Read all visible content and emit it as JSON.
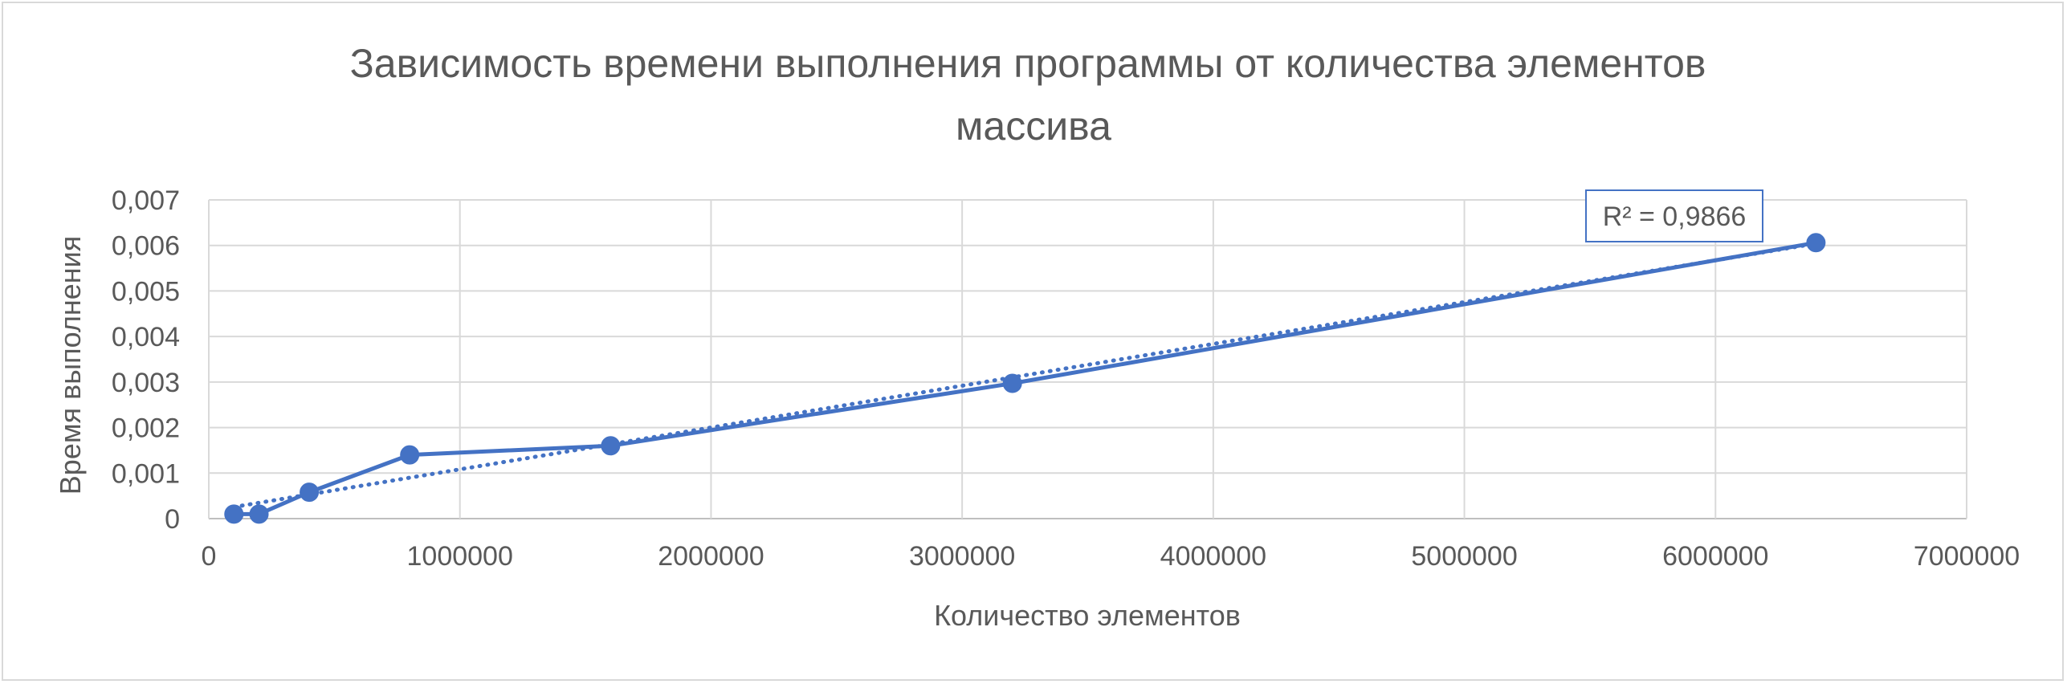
{
  "chart_data": {
    "type": "scatter",
    "title": "Зависимость времени выполнения программы от количества элементов массива",
    "title_lines": [
      "Зависимость времени выполнения программы от количества элементов",
      "массива"
    ],
    "xlabel": "Количество элементов",
    "ylabel": "Время выполнения",
    "xlim": [
      0,
      7000000
    ],
    "ylim": [
      0,
      0.007
    ],
    "x_ticks": [
      0,
      1000000,
      2000000,
      3000000,
      4000000,
      5000000,
      6000000,
      7000000
    ],
    "x_tick_labels": [
      "0",
      "1000000",
      "2000000",
      "3000000",
      "4000000",
      "5000000",
      "6000000",
      "7000000"
    ],
    "y_ticks": [
      0,
      0.001,
      0.002,
      0.003,
      0.004,
      0.005,
      0.006,
      0.007
    ],
    "y_tick_labels": [
      "0",
      "0,001",
      "0,002",
      "0,003",
      "0,004",
      "0,005",
      "0,006",
      "0,007"
    ],
    "grid": true,
    "series": [
      {
        "x": [
          100000,
          200000,
          400000,
          800000,
          1600000,
          3200000,
          6400000
        ],
        "y": [
          0.0001,
          0.0001,
          0.00058,
          0.0014,
          0.0016,
          0.00297,
          0.00606
        ],
        "color": "#4472c4",
        "markers": true,
        "line": "solid",
        "trendline": {
          "type": "linear",
          "style": "dotted",
          "r_squared_label": "R² = 0,9866"
        }
      }
    ]
  }
}
